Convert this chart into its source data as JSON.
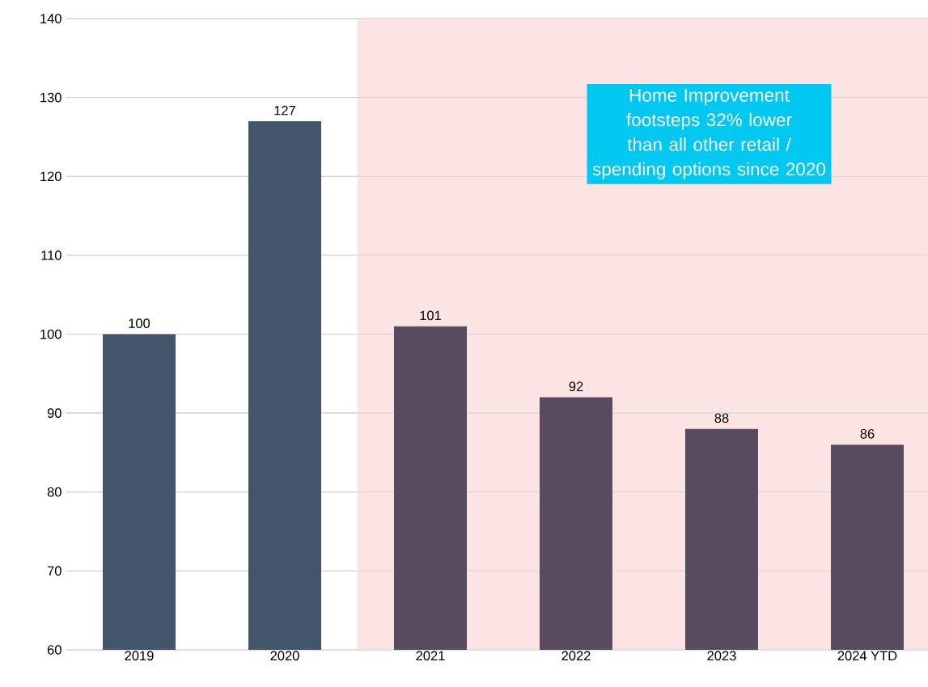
{
  "chart_data": {
    "type": "bar",
    "categories": [
      "2019",
      "2020",
      "2021",
      "2022",
      "2023",
      "2024 YTD"
    ],
    "values": [
      100,
      127,
      101,
      92,
      88,
      86
    ],
    "colors": [
      "#44546a",
      "#44546a",
      "#584b5f",
      "#584b5f",
      "#584b5f",
      "#584b5f"
    ],
    "ylim": [
      60,
      140
    ],
    "yticks": [
      60,
      70,
      80,
      90,
      100,
      110,
      120,
      130,
      140
    ],
    "grid": "y",
    "data_labels": true,
    "bands": [
      {
        "axis": "x",
        "from": "2021",
        "to": "2024 YTD",
        "color": "#fde4e4"
      }
    ],
    "annotations": [
      "Home Improvement footsteps 32% lower than all other retail / spending options since 2020"
    ]
  }
}
